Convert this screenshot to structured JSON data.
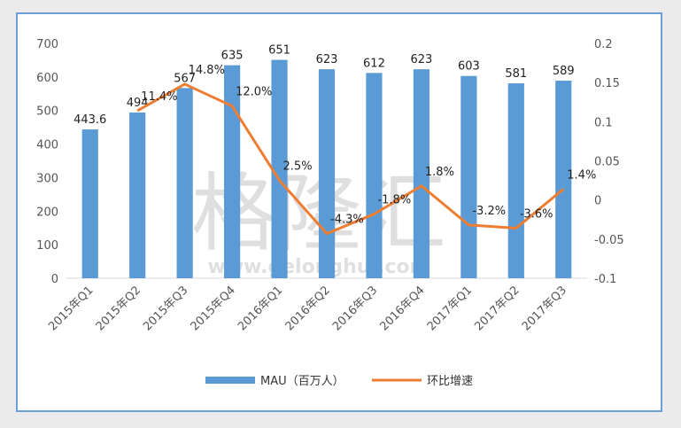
{
  "watermark": {
    "logo_text": "格隆汇",
    "url_text": "www.gelonghui.com"
  },
  "chart_data": {
    "type": "bar",
    "categories": [
      "2015年Q1",
      "2015年Q2",
      "2015年Q3",
      "2015年Q4",
      "2016年Q1",
      "2016年Q2",
      "2016年Q3",
      "2016年Q4",
      "2017年Q1",
      "2017年Q2",
      "2017年Q3"
    ],
    "series": [
      {
        "name": "MAU（百万人）",
        "type": "bar",
        "axis": "left",
        "color": "#5b9bd5",
        "values": [
          443.6,
          494,
          567,
          635,
          651,
          623,
          612,
          623,
          603,
          581,
          589
        ],
        "labels": [
          "443.6",
          "494",
          "567",
          "635",
          "651",
          "623",
          "612",
          "623",
          "603",
          "581",
          "589"
        ]
      },
      {
        "name": "环比增速",
        "type": "line",
        "axis": "right",
        "color": "#ed7d31",
        "values": [
          null,
          0.114,
          0.148,
          0.12,
          0.025,
          -0.043,
          -0.018,
          0.018,
          -0.032,
          -0.036,
          0.014
        ],
        "labels": [
          "",
          "11.4%",
          "14.8%",
          "12.0%",
          "2.5%",
          "-4.3%",
          "-1.8%",
          "1.8%",
          "-3.2%",
          "-3.6%",
          "1.4%"
        ]
      }
    ],
    "y_left": {
      "min": 0,
      "max": 700,
      "ticks": [
        "0",
        "100",
        "200",
        "300",
        "400",
        "500",
        "600",
        "700"
      ]
    },
    "y_right": {
      "min": -0.1,
      "max": 0.2,
      "ticks": [
        "-0.1",
        "-0.05",
        "0",
        "0.05",
        "0.1",
        "0.15",
        "0.2"
      ]
    },
    "legend_position": "bottom",
    "grid": false
  }
}
